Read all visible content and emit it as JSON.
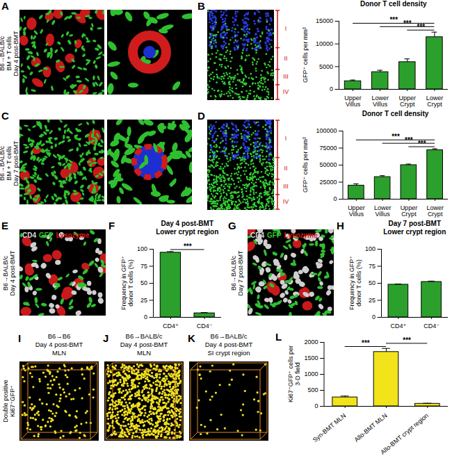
{
  "chart_data": [
    {
      "type": "bar",
      "title": "Donor T cell density",
      "y_label": "GFP⁺ cells per mm³",
      "categories": [
        "Upper Villus",
        "Lower Villus",
        "Upper Crypt",
        "Lower Crypt"
      ],
      "values": [
        1800,
        3800,
        6000,
        11500
      ],
      "errors": [
        250,
        400,
        700,
        1100
      ],
      "color": "#2ca02c",
      "ylim": [
        0,
        15000
      ],
      "yticks": [
        0,
        5000,
        10000,
        15000
      ],
      "significance": [
        {
          "pair": [
            "Upper Crypt",
            "Lower Crypt"
          ],
          "label": "***"
        },
        {
          "pair": [
            "Lower Villus",
            "Lower Crypt"
          ],
          "label": "***"
        },
        {
          "pair": [
            "Upper Villus",
            "Lower Crypt"
          ],
          "label": "***"
        }
      ]
    },
    {
      "type": "bar",
      "title": "Donor T cell density",
      "y_label": "GFP⁺ cells per mm³",
      "categories": [
        "Upper Villus",
        "Lower Villus",
        "Upper Crypt",
        "Lower Crypt"
      ],
      "values": [
        20000,
        32500,
        50000,
        72000
      ],
      "errors": [
        2500,
        2000,
        1500,
        2000
      ],
      "color": "#2ca02c",
      "ylim": [
        0,
        100000
      ],
      "yticks": [
        0,
        25000,
        50000,
        75000,
        100000
      ],
      "significance": [
        {
          "pair": [
            "Upper Crypt",
            "Lower Crypt"
          ],
          "label": "***"
        },
        {
          "pair": [
            "Lower Villus",
            "Lower Crypt"
          ],
          "label": "***"
        },
        {
          "pair": [
            "Upper Villus",
            "Lower Crypt"
          ],
          "label": "***"
        }
      ]
    },
    {
      "panel": "F",
      "type": "bar",
      "title": "Day 4 post-BMT",
      "subtitle": "Lower crypt region",
      "y_label": "Frequency in GFP⁺ donor T cells (%)",
      "categories": [
        "CD4⁺",
        "CD4⁻"
      ],
      "values": [
        95,
        6
      ],
      "errors": [
        1.5,
        1
      ],
      "color": "#2ca02c",
      "ylim": [
        0,
        100
      ],
      "yticks": [
        0,
        25,
        50,
        75,
        100
      ],
      "significance": [
        {
          "pair": [
            "CD4⁺",
            "CD4⁻"
          ],
          "label": "***"
        }
      ]
    },
    {
      "panel": "H",
      "type": "bar",
      "title": "Day 7 post-BMT",
      "subtitle": "Lower crypt region",
      "y_label": "Frequency in GFP⁺ donor T cells (%)",
      "categories": [
        "CD4⁺",
        "CD4⁻"
      ],
      "values": [
        48,
        52
      ],
      "errors": [
        1,
        1.2
      ],
      "color": "#2ca02c",
      "ylim": [
        0,
        100
      ],
      "yticks": [
        0,
        25,
        50,
        75,
        100
      ]
    },
    {
      "panel": "L",
      "type": "bar",
      "y_label": "Ki67⁺GFP⁺ cells per 3-D field",
      "categories": [
        "Syn-BMT MLN",
        "Allo-BMT MLN",
        "Allo-BMT crypt region"
      ],
      "values": [
        280,
        1700,
        80
      ],
      "errors": [
        40,
        110,
        15
      ],
      "color": "#f2e31b",
      "ylim": [
        0,
        2000
      ],
      "yticks": [
        0,
        500,
        1000,
        1500,
        2000
      ],
      "significance": [
        {
          "pair": [
            "Syn-BMT MLN",
            "Allo-BMT MLN"
          ],
          "label": "***"
        },
        {
          "pair": [
            "Allo-BMT MLN",
            "Allo-BMT crypt region"
          ],
          "label": "***"
        }
      ]
    }
  ],
  "images": [
    {
      "panel": "A",
      "side_label": [
        "B6→BALB/c",
        "BM + T cells",
        "Day 4 post-BMT"
      ]
    },
    {
      "panel": "B",
      "zones": [
        "I",
        "II",
        "III",
        "IV"
      ]
    },
    {
      "panel": "C",
      "side_label": [
        "B6→BALB/c",
        "BM + T cells",
        "Day 7 post-BMT"
      ]
    },
    {
      "panel": "D",
      "zones": [
        "I",
        "II",
        "III",
        "IV"
      ]
    },
    {
      "panel": "E",
      "side_label": [
        "B6→BALB/c",
        "Day 4 post-BMT"
      ],
      "legend": [
        {
          "name": "CD4",
          "color": "#d9d9d9"
        },
        {
          "name": "GFP",
          "color": "#2fc02f"
        },
        {
          "name": "Lysozyme",
          "color": "#e01818"
        }
      ]
    },
    {
      "panel": "G",
      "side_label": [
        "B6→BALB/c",
        "Day 7 post-BMT"
      ],
      "legend": [
        {
          "name": "CD4",
          "color": "#d9d9d9"
        },
        {
          "name": "GFP",
          "color": "#2fc02f"
        },
        {
          "name": "Lysozyme",
          "color": "#e01818"
        }
      ]
    },
    {
      "panel": "I",
      "title": [
        "B6→B6",
        "Day 4 post-BMT",
        "MLN"
      ],
      "side_label": [
        "Double positive",
        "Ki67⁺GFP⁺"
      ]
    },
    {
      "panel": "J",
      "title": [
        "B6→BALB/c",
        "Day 4 post-BMT",
        "MLN"
      ]
    },
    {
      "panel": "K",
      "title": [
        "B6→BALB/c",
        "Day 4 post-BMT",
        "SI crypt region"
      ]
    }
  ]
}
